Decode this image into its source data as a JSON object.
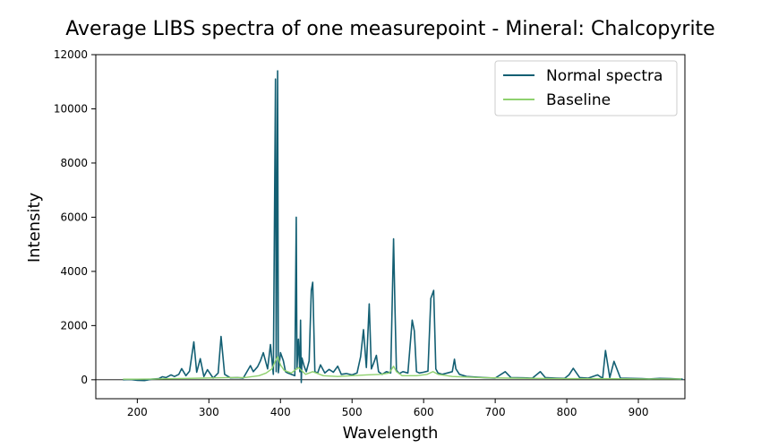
{
  "chart_data": {
    "type": "line",
    "title": "Average LIBS spectra of one measurepoint - Mineral: Chalcopyrite",
    "xlabel": "Wavelength",
    "ylabel": "Intensity",
    "xlim": [
      142,
      965
    ],
    "ylim": [
      -700,
      12000
    ],
    "xticks": [
      200,
      300,
      400,
      500,
      600,
      700,
      800,
      900
    ],
    "yticks": [
      0,
      2000,
      4000,
      6000,
      8000,
      10000,
      12000
    ],
    "grid": false,
    "legend_position": "top-right",
    "zero_line": true,
    "series": [
      {
        "name": "Normal spectra",
        "color": "#135f73",
        "x": [
          180,
          190,
          200,
          210,
          220,
          230,
          235,
          240,
          247,
          252,
          258,
          262,
          268,
          273,
          279,
          283,
          288,
          293,
          298,
          306,
          313,
          317,
          322,
          330,
          340,
          348,
          358,
          362,
          368,
          372,
          376,
          382,
          386,
          390,
          393,
          394,
          396,
          397,
          400,
          404,
          407,
          410,
          415,
          420,
          422,
          423,
          425,
          427,
          428,
          429,
          430,
          433,
          436,
          440,
          443,
          445,
          448,
          452,
          456,
          462,
          468,
          474,
          480,
          485,
          492,
          500,
          507,
          512,
          516,
          520,
          524,
          527,
          530,
          534,
          537,
          542,
          548,
          554,
          558,
          560,
          562,
          566,
          571,
          578,
          584,
          587,
          590,
          594,
          600,
          606,
          610,
          614,
          617,
          620,
          626,
          633,
          640,
          643,
          645,
          650,
          660,
          672,
          685,
          700,
          714,
          722,
          740,
          752,
          763,
          770,
          785,
          797,
          803,
          809,
          818,
          830,
          843,
          850,
          854,
          860,
          866,
          875,
          890,
          905,
          915,
          930,
          945,
          955,
          962
        ],
        "y": [
          0,
          10,
          -20,
          -30,
          20,
          40,
          110,
          80,
          180,
          120,
          200,
          410,
          150,
          320,
          1400,
          280,
          780,
          120,
          370,
          60,
          250,
          1600,
          200,
          70,
          80,
          60,
          520,
          300,
          480,
          700,
          1000,
          400,
          1300,
          200,
          11100,
          300,
          11400,
          260,
          1000,
          700,
          300,
          250,
          200,
          150,
          6000,
          400,
          1500,
          300,
          2200,
          -100,
          800,
          500,
          300,
          700,
          3300,
          3600,
          300,
          250,
          550,
          250,
          380,
          280,
          500,
          200,
          230,
          180,
          250,
          850,
          1850,
          450,
          2800,
          400,
          600,
          900,
          300,
          200,
          300,
          250,
          5200,
          2600,
          350,
          230,
          300,
          250,
          2200,
          1800,
          300,
          250,
          280,
          320,
          3000,
          3300,
          400,
          250,
          200,
          250,
          300,
          760,
          400,
          200,
          120,
          100,
          80,
          60,
          300,
          80,
          70,
          60,
          300,
          80,
          60,
          50,
          180,
          420,
          80,
          60,
          180,
          50,
          1080,
          80,
          680,
          60,
          50,
          40,
          30,
          50,
          40,
          30,
          20
        ]
      },
      {
        "name": "Baseline",
        "color": "#8fd16e",
        "x": [
          180,
          200,
          230,
          250,
          270,
          290,
          310,
          330,
          350,
          370,
          380,
          388,
          393,
          396,
          400,
          405,
          415,
          425,
          435,
          445,
          460,
          480,
          500,
          520,
          540,
          552,
          558,
          562,
          570,
          590,
          605,
          613,
          620,
          640,
          680,
          720,
          760,
          800,
          850,
          900,
          960
        ],
        "y": [
          20,
          20,
          30,
          40,
          50,
          60,
          70,
          80,
          80,
          150,
          250,
          400,
          700,
          850,
          550,
          350,
          250,
          450,
          200,
          300,
          150,
          120,
          150,
          180,
          200,
          250,
          500,
          300,
          150,
          150,
          200,
          300,
          200,
          120,
          80,
          60,
          50,
          40,
          40,
          30,
          30
        ]
      }
    ]
  }
}
